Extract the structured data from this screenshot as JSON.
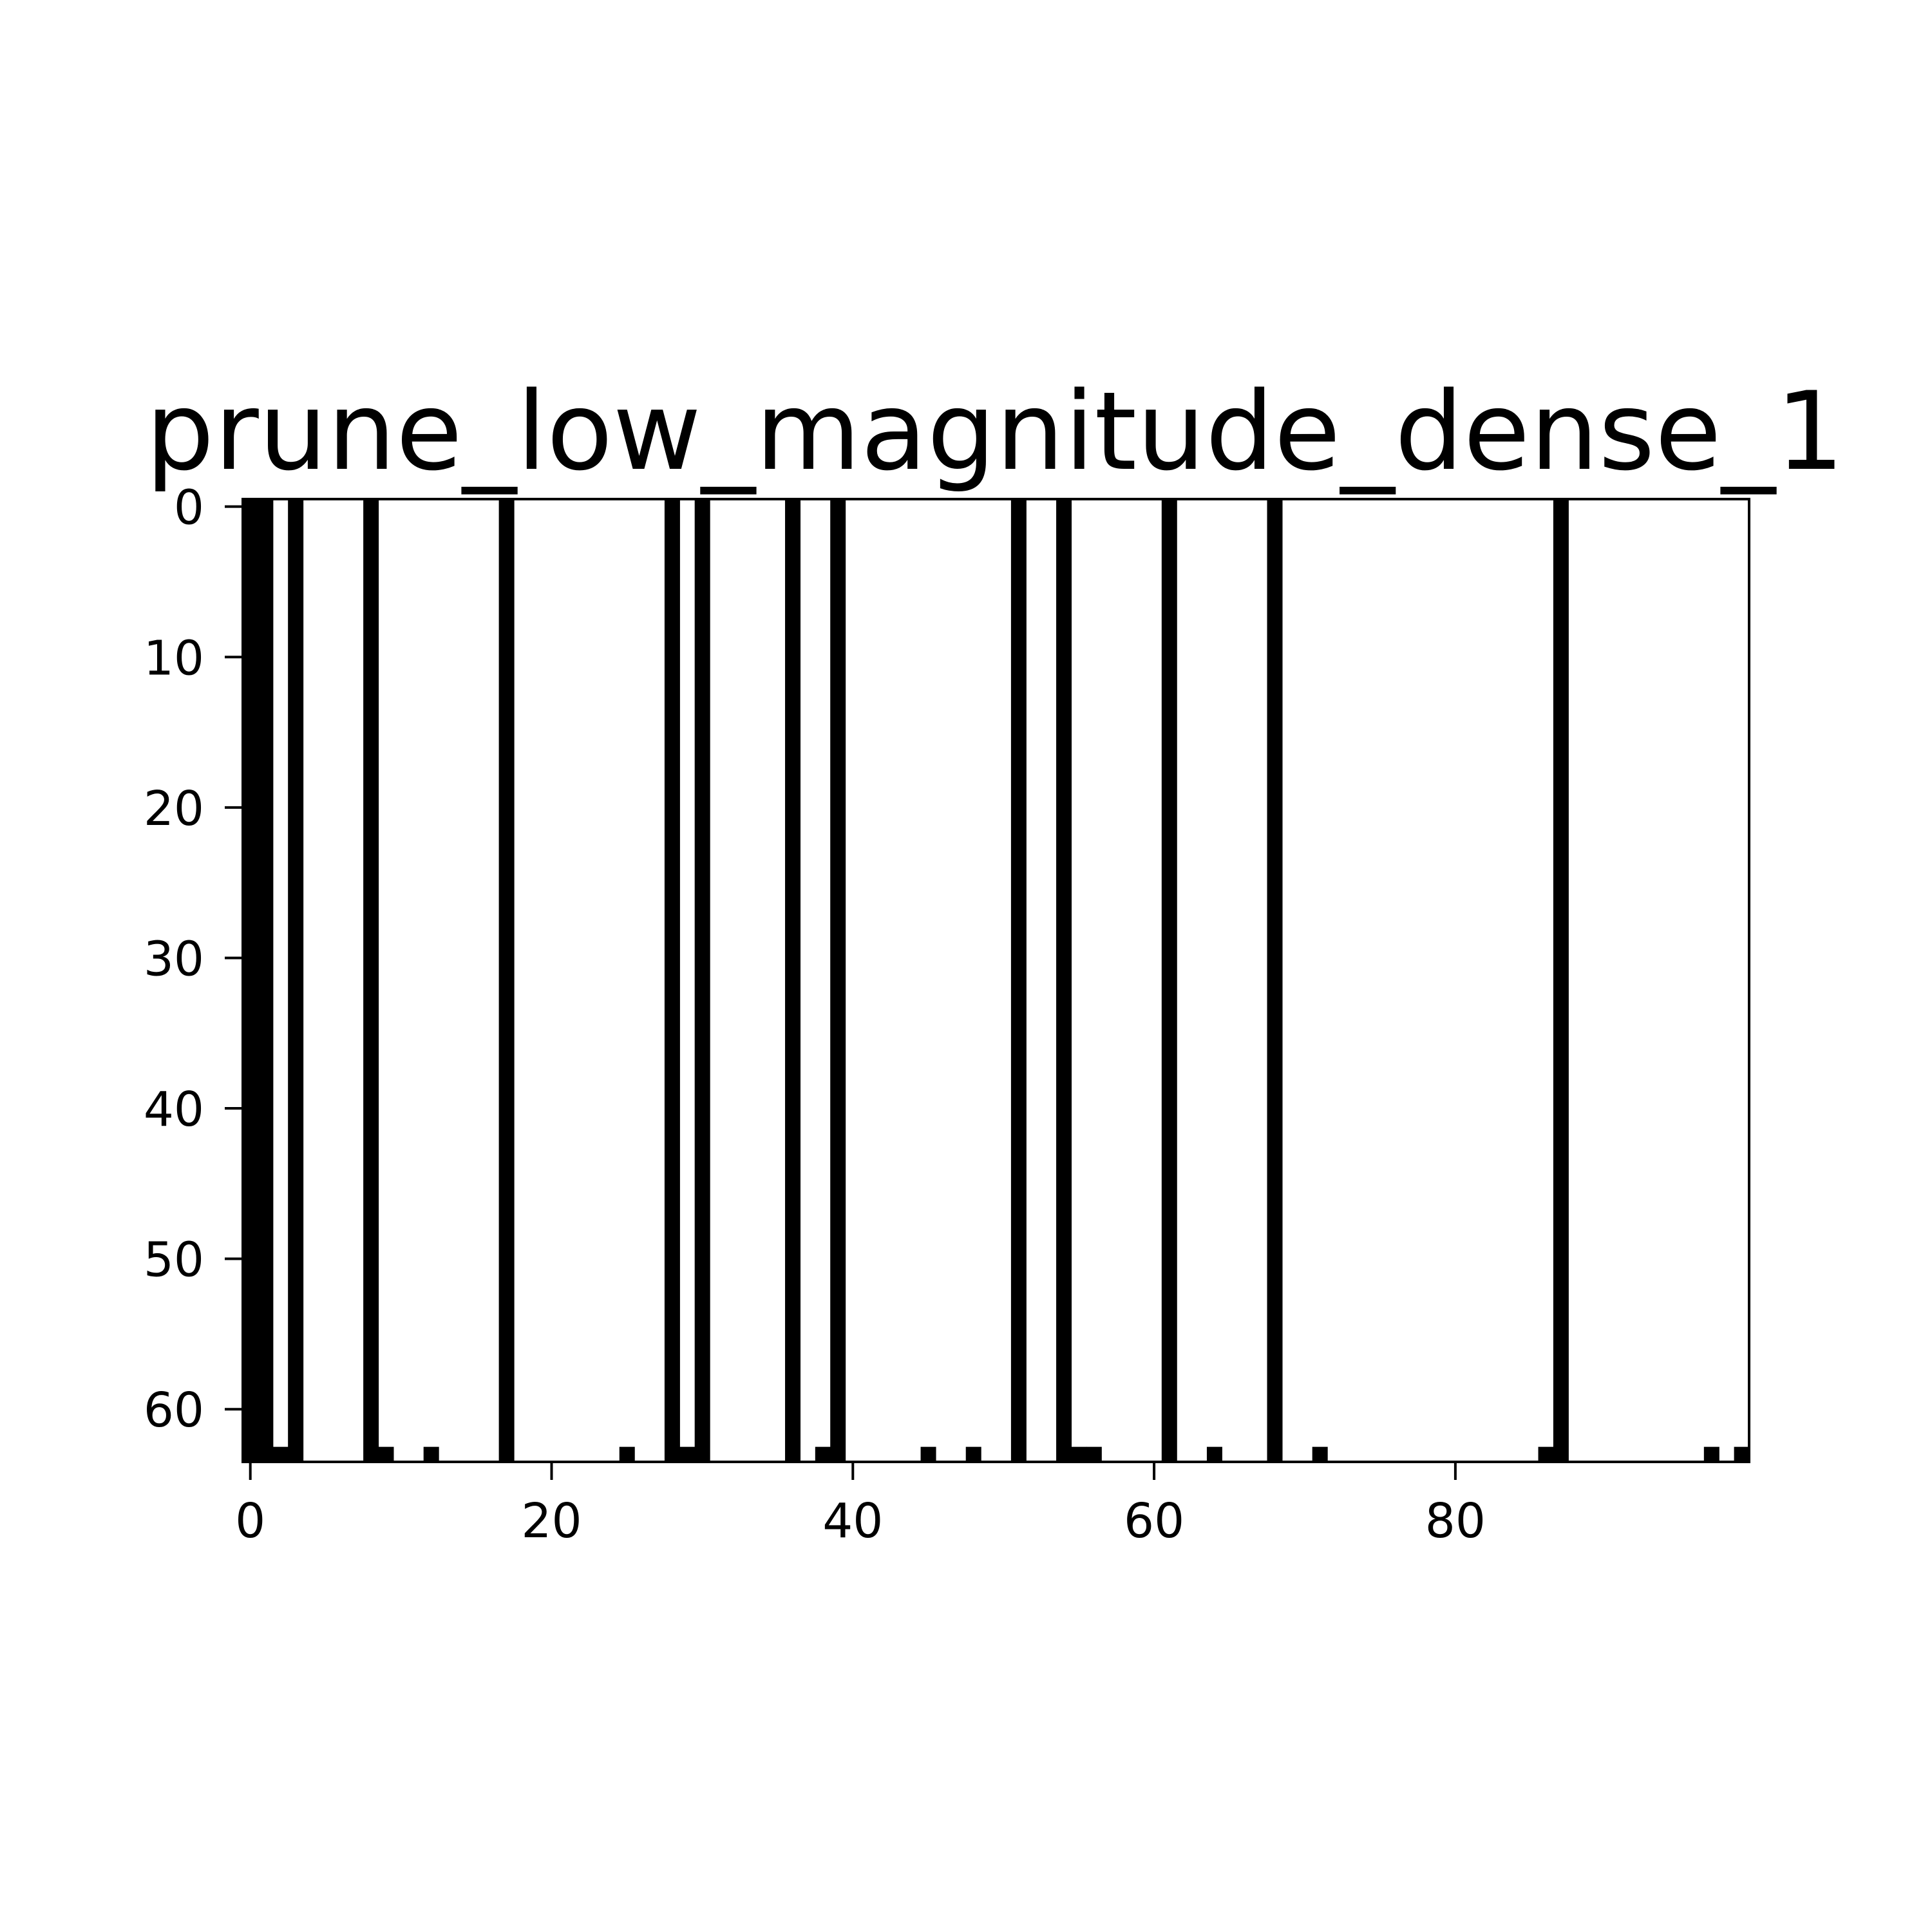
{
  "chart_data": {
    "type": "heatmap",
    "title": "prune_low_magnitude_dense_1",
    "xlabel": "",
    "ylabel": "",
    "xlim": [
      -0.5,
      99.5
    ],
    "ylim": [
      63.5,
      -0.5
    ],
    "y_axis_inverted": true,
    "grid": false,
    "legend": "none",
    "x_ticks": [
      0,
      20,
      40,
      60,
      80
    ],
    "x_tick_labels": [
      "0",
      "20",
      "40",
      "60",
      "80"
    ],
    "y_ticks": [
      0,
      10,
      20,
      30,
      40,
      50,
      60
    ],
    "y_tick_labels": [
      "0",
      "10",
      "20",
      "30",
      "40",
      "50",
      "60"
    ],
    "colormap": {
      "zero": "#ffffff",
      "nonzero": "#000000"
    },
    "frame_color": "#000000",
    "background_color": "#ffffff",
    "n_columns": 100,
    "n_rows": 64,
    "nonzero_columns": [
      0,
      1,
      3,
      8,
      17,
      28,
      30,
      36,
      39,
      51,
      54,
      61,
      68,
      87
    ],
    "nonzero_cells_last_row": {
      "row": 63,
      "columns": [
        2,
        9,
        12,
        25,
        29,
        38,
        45,
        48,
        55,
        56,
        64,
        71,
        86,
        97,
        99
      ]
    }
  }
}
